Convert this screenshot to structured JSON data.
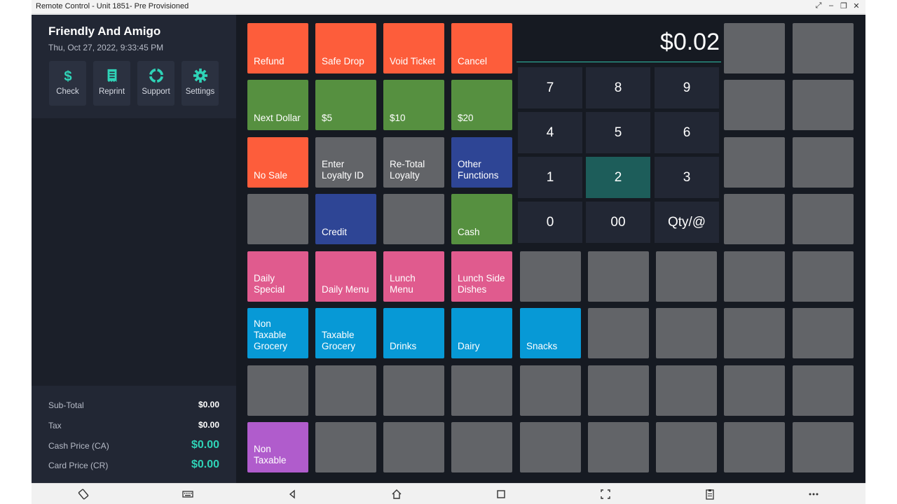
{
  "window": {
    "title": "Remote Control - Unit 1851- Pre Provisioned"
  },
  "store": {
    "name": "Friendly And Amigo",
    "datetime": "Thu, Oct 27, 2022, 9:33:45 PM"
  },
  "quick_actions": [
    {
      "label": "Check",
      "icon": "dollar-icon"
    },
    {
      "label": "Reprint",
      "icon": "receipt-icon"
    },
    {
      "label": "Support",
      "icon": "lifebuoy-icon"
    },
    {
      "label": "Settings",
      "icon": "gear-icon"
    }
  ],
  "totals": {
    "subtotal_label": "Sub-Total",
    "subtotal_value": "$0.00",
    "tax_label": "Tax",
    "tax_value": "$0.00",
    "cash_label": "Cash Price (CA)",
    "cash_value": "$0.00",
    "card_label": "Card Price (CR)",
    "card_value": "$0.00"
  },
  "colors": {
    "orange": "#fd5d3b",
    "green": "#569040",
    "grey": "#626468",
    "navy": "#2e4595",
    "pink": "#e05b8e",
    "blue": "#0799d6",
    "purple": "#b05ccc",
    "accent": "#2fd3b7"
  },
  "tiles": {
    "refund": "Refund",
    "safe_drop": "Safe Drop",
    "void_ticket": "Void Ticket",
    "cancel": "Cancel",
    "next_dollar": "Next Dollar",
    "five": "$5",
    "ten": "$10",
    "twenty": "$20",
    "no_sale": "No Sale",
    "enter_loyalty": "Enter\nLoyalty ID",
    "retotal_loyalty": "Re-Total\nLoyalty",
    "other_functions": "Other\nFunctions",
    "credit": "Credit",
    "cash": "Cash",
    "daily_special": "Daily\nSpecial",
    "daily_menu": "Daily Menu",
    "lunch_menu": "Lunch\nMenu",
    "lunch_side": "Lunch Side\nDishes",
    "non_taxable_grocery": "Non\nTaxable\nGrocery",
    "taxable_grocery": "Taxable\nGrocery",
    "drinks": "Drinks",
    "dairy": "Dairy",
    "snacks": "Snacks",
    "non_taxable": "Non\nTaxable"
  },
  "keypad": {
    "amount": "$0.02",
    "keys": [
      "7",
      "8",
      "9",
      "4",
      "5",
      "6",
      "1",
      "2",
      "3",
      "0",
      "00",
      "Qty/@"
    ],
    "active_key": "2"
  }
}
